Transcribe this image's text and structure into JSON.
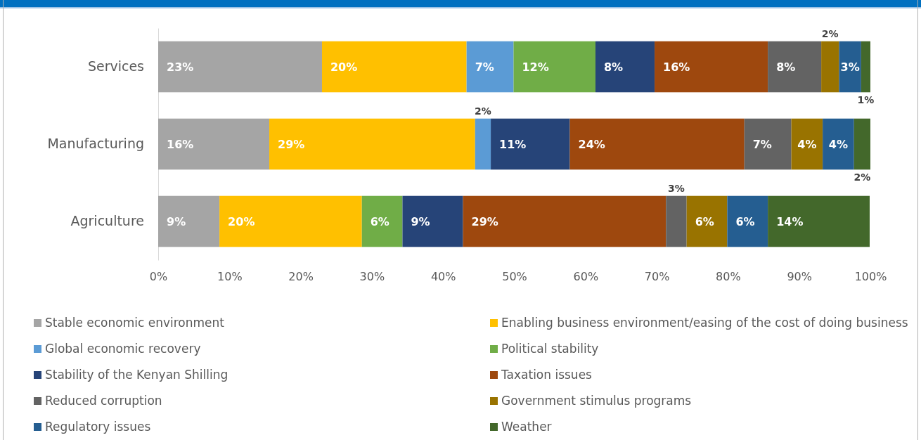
{
  "chart_data": {
    "type": "bar",
    "orientation": "horizontal",
    "stacked": true,
    "categories": [
      "Services",
      "Manufacturing",
      "Agriculture"
    ],
    "xlim": [
      0,
      100
    ],
    "xticks": [
      {
        "value": 0,
        "label": "0%"
      },
      {
        "value": 10,
        "label": "10%"
      },
      {
        "value": 20,
        "label": "20%"
      },
      {
        "value": 30,
        "label": "30%"
      },
      {
        "value": 40,
        "label": "40%"
      },
      {
        "value": 50,
        "label": "50%"
      },
      {
        "value": 60,
        "label": "60%"
      },
      {
        "value": 70,
        "label": "70%"
      },
      {
        "value": 80,
        "label": "80%"
      },
      {
        "value": 90,
        "label": "90%"
      },
      {
        "value": 100,
        "label": "100%"
      }
    ],
    "grid": false,
    "legend": "bottom",
    "series": [
      {
        "name": "Stable economic environment",
        "color": "#a5a5a5",
        "values": [
          23.0,
          15.6,
          8.6
        ],
        "value_labels": [
          "23%",
          "16%",
          "9%"
        ]
      },
      {
        "name": "Enabling business environment/easing of the cost of doing business",
        "color": "#ffc000",
        "values": [
          20.3,
          28.9,
          20.0
        ],
        "value_labels": [
          "20%",
          "29%",
          "20%"
        ]
      },
      {
        "name": "Global economic recovery",
        "color": "#5b9bd5",
        "values": [
          6.6,
          2.2,
          null
        ],
        "value_labels": [
          "7%",
          "2%",
          null
        ]
      },
      {
        "name": "Political stability",
        "color": "#70ad47",
        "values": [
          11.5,
          null,
          5.7
        ],
        "value_labels": [
          "12%",
          null,
          "6%"
        ]
      },
      {
        "name": "Stability of the Kenyan Shilling",
        "color": "#264478",
        "values": [
          8.3,
          11.1,
          8.5
        ],
        "value_labels": [
          "8%",
          "11%",
          "9%"
        ]
      },
      {
        "name": "Taxation issues",
        "color": "#9e480e",
        "values": [
          15.9,
          24.5,
          28.5
        ],
        "value_labels": [
          "16%",
          "24%",
          "29%"
        ]
      },
      {
        "name": "Reduced corruption",
        "color": "#636363",
        "values": [
          7.5,
          6.6,
          2.9
        ],
        "value_labels": [
          "8%",
          "7%",
          "3%"
        ]
      },
      {
        "name": "Government stimulus programs",
        "color": "#997300",
        "values": [
          2.5,
          4.4,
          5.7
        ],
        "value_labels": [
          "2%",
          "4%",
          "6%"
        ]
      },
      {
        "name": "Regulatory issues",
        "color": "#255e91",
        "values": [
          3.1,
          4.4,
          5.7
        ],
        "value_labels": [
          "3%",
          "4%",
          "6%"
        ]
      },
      {
        "name": "Weather",
        "color": "#43682b",
        "values": [
          1.3,
          2.3,
          14.3
        ],
        "value_labels": [
          "1%",
          "2%",
          "14%"
        ]
      }
    ]
  }
}
